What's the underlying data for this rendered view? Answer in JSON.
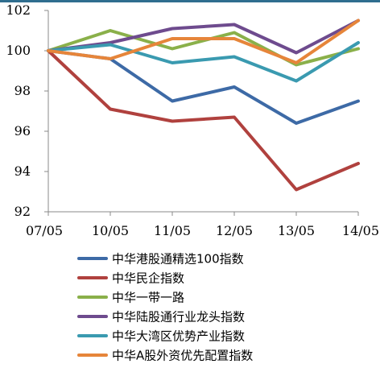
{
  "chart_data": {
    "type": "line",
    "categories": [
      "07/05",
      "10/05",
      "11/05",
      "12/05",
      "13/05",
      "14/05"
    ],
    "ylim": [
      92,
      102
    ],
    "yticks": [
      92,
      94,
      96,
      98,
      100,
      102
    ],
    "grid": false,
    "legend_position": "bottom",
    "series": [
      {
        "name": "中华港股通精选100指数",
        "color": "#3d6aa6",
        "values": [
          100.0,
          99.6,
          97.5,
          98.2,
          96.4,
          97.5
        ]
      },
      {
        "name": "中华民企指数",
        "color": "#b0413e",
        "values": [
          100.0,
          97.1,
          96.5,
          96.7,
          93.1,
          94.4
        ]
      },
      {
        "name": "中华一带一路",
        "color": "#8ab04a",
        "values": [
          100.0,
          101.0,
          100.1,
          100.9,
          99.3,
          100.1
        ]
      },
      {
        "name": "中华陆股通行业龙头指数",
        "color": "#6e4b8e",
        "values": [
          100.0,
          100.4,
          101.1,
          101.3,
          99.9,
          101.5
        ]
      },
      {
        "name": "中华大湾区优势产业指数",
        "color": "#3a9ab0",
        "values": [
          100.0,
          100.3,
          99.4,
          99.7,
          98.5,
          100.4
        ]
      },
      {
        "name": "中华A股外资优先配置指数",
        "color": "#e6853a",
        "values": [
          100.0,
          99.6,
          100.6,
          100.6,
          99.4,
          101.5
        ]
      }
    ]
  }
}
